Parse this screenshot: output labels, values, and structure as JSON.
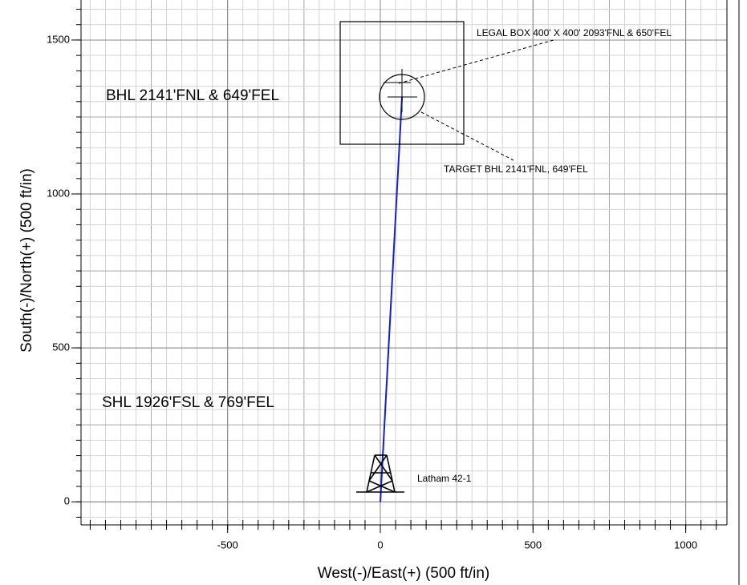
{
  "chart_data": {
    "type": "line",
    "xlabel": "West(-)/East(+) (500 ft/in)",
    "ylabel": "South(-)/North(+) (500 ft/in)",
    "x": [
      0,
      71
    ],
    "series": [
      {
        "name": "Latham 42-1",
        "color": "#1020d0",
        "values": [
          0,
          1315
        ]
      }
    ],
    "xlim": [
      -980,
      1135
    ],
    "ylim": [
      -75,
      1630
    ],
    "xticks": [
      -500,
      0,
      500,
      1000
    ],
    "yticks": [
      0,
      500,
      1000,
      1500
    ],
    "grid": true,
    "annotations": [
      "BHL 2141'FNL & 649'FEL",
      "SHL 1926'FSL & 769'FEL",
      "LEGAL BOX 400' X 400' 2093'FNL & 650'FEL",
      "TARGET BHL 2141'FNL, 649'FEL"
    ]
  }
}
